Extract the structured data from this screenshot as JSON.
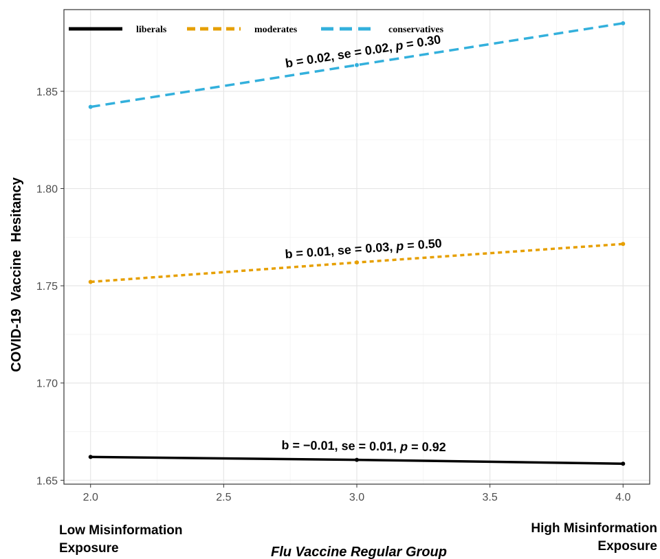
{
  "chart_data": {
    "type": "line",
    "xlabel": "Flu Vaccine Regular Group",
    "ylabel": "COVID-19  Vaccine  Hesitancy",
    "x_ticks": [
      "2.0",
      "2.5",
      "3.0",
      "3.5",
      "4.0"
    ],
    "y_ticks": [
      "1.65",
      "1.70",
      "1.75",
      "1.80",
      "1.85"
    ],
    "xlim": [
      1.9,
      4.1
    ],
    "ylim": [
      1.648,
      1.892
    ],
    "x": [
      2.0,
      3.0,
      4.0
    ],
    "grid": true,
    "legend_position": "top-left",
    "series": [
      {
        "name": "liberals",
        "values": [
          1.662,
          1.6605,
          1.6585
        ],
        "color": "#000000",
        "dash": "solid"
      },
      {
        "name": "moderates",
        "values": [
          1.752,
          1.762,
          1.7715
        ],
        "color": "#e69f00",
        "dash": "dotted"
      },
      {
        "name": "conservatives",
        "values": [
          1.842,
          1.8635,
          1.885
        ],
        "color": "#33b0dc",
        "dash": "dashed"
      }
    ],
    "annotations": [
      {
        "series": "conservatives",
        "text": "b = 0.02, se = 0.02, p = 0.30",
        "pre": "b = 0.02, se = 0.02, ",
        "p_label": "p",
        "post": " = 0.30"
      },
      {
        "series": "moderates",
        "text": "b = 0.01, se = 0.03, p = 0.50",
        "pre": "b = 0.01, se = 0.03, ",
        "p_label": "p",
        "post": " = 0.50"
      },
      {
        "series": "liberals",
        "text": "b = −0.01, se = 0.01, p = 0.92",
        "pre": "b = −0.01, se = 0.01, ",
        "p_label": "p",
        "post": " = 0.92"
      }
    ],
    "x_end_labels": {
      "left": [
        "Low Misinformation",
        "Exposure"
      ],
      "right": [
        "High Misinformation",
        "Exposure"
      ]
    }
  }
}
